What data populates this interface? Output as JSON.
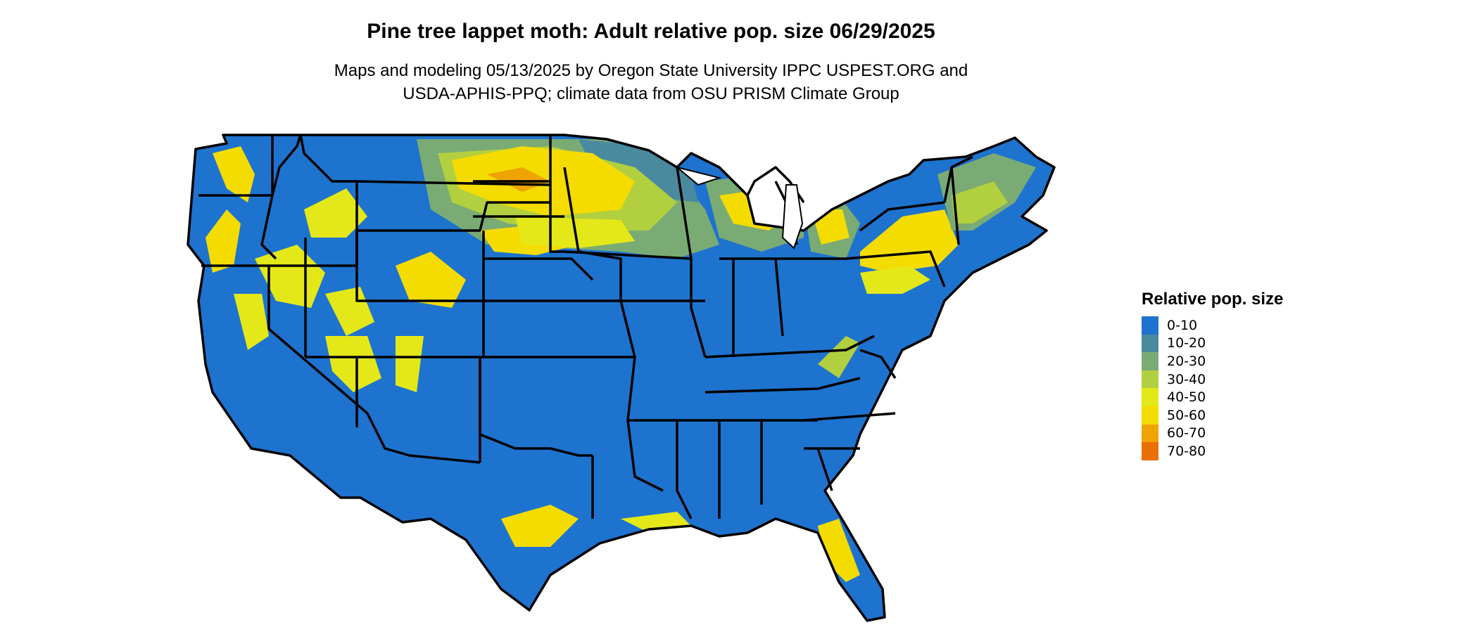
{
  "title": "Pine tree lappet moth: Adult relative pop. size 06/29/2025",
  "subtitle_lines": [
    "Maps and modeling 05/13/2025 by Oregon State University IPPC USPEST.ORG and",
    "USDA-APHIS-PPQ; climate data from OSU PRISM Climate Group"
  ],
  "legend": {
    "title": "Relative pop. size",
    "items": [
      {
        "label": "0-10",
        "color": "#1e73cf"
      },
      {
        "label": "10-20",
        "color": "#4a8a9f"
      },
      {
        "label": "20-30",
        "color": "#7aab74"
      },
      {
        "label": "30-40",
        "color": "#b2cf40"
      },
      {
        "label": "40-50",
        "color": "#e4e818"
      },
      {
        "label": "50-60",
        "color": "#f5dc00"
      },
      {
        "label": "60-70",
        "color": "#efa400"
      },
      {
        "label": "70-80",
        "color": "#e86f00"
      }
    ]
  },
  "map": {
    "region": "conterminous United States",
    "base_color": "#1e73cf",
    "border_color": "#000000"
  }
}
